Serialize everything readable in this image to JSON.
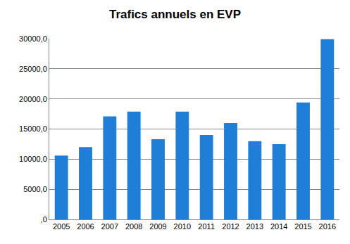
{
  "chart_data": {
    "type": "bar",
    "title": "Trafics annuels en EVP",
    "categories": [
      "2005",
      "2006",
      "2007",
      "2008",
      "2009",
      "2010",
      "2011",
      "2012",
      "2013",
      "2014",
      "2015",
      "2016"
    ],
    "values": [
      10600,
      12000,
      17100,
      17900,
      13300,
      17900,
      14000,
      16000,
      13000,
      12500,
      19400,
      29900
    ],
    "color": "#1f7ed6",
    "ylim": [
      0,
      30000
    ],
    "yticks": [
      {
        "value": 0,
        "label": ",0"
      },
      {
        "value": 5000,
        "label": "5000,0"
      },
      {
        "value": 10000,
        "label": "10000,0"
      },
      {
        "value": 15000,
        "label": "15000,0"
      },
      {
        "value": 20000,
        "label": "20000,0"
      },
      {
        "value": 25000,
        "label": "25000,0"
      },
      {
        "value": 30000,
        "label": "30000,0"
      }
    ],
    "grid": true
  }
}
